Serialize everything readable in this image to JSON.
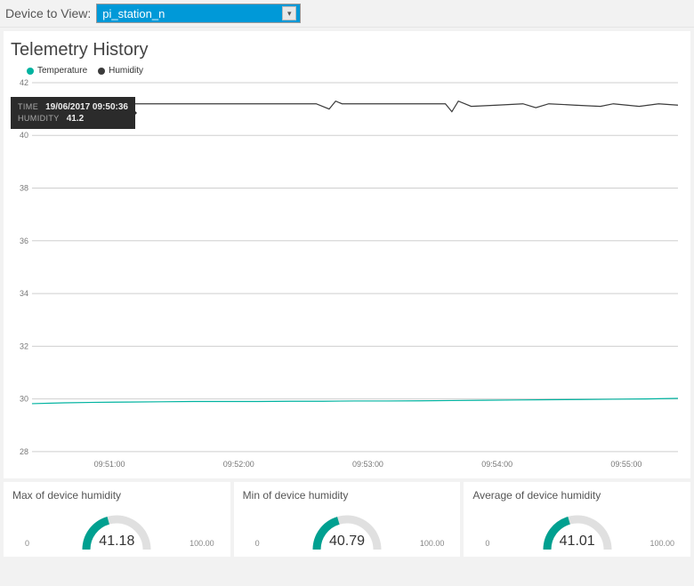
{
  "header": {
    "label": "Device to View:",
    "selected_device": "pi_station_n"
  },
  "chart": {
    "title": "Telemetry History",
    "legend": [
      {
        "label": "Temperature",
        "color": "#00b3a0"
      },
      {
        "label": "Humidity",
        "color": "#3b3b3b"
      }
    ],
    "type": "line",
    "y": {
      "min": 28,
      "max": 42,
      "step": 2,
      "ticks": [
        28,
        30,
        32,
        34,
        36,
        38,
        40,
        42
      ],
      "label_fontsize": 9,
      "label_color": "#777777"
    },
    "x": {
      "ticks": [
        "09:51:00",
        "09:52:00",
        "09:53:00",
        "09:54:00",
        "09:55:00"
      ],
      "positions": [
        0.12,
        0.32,
        0.52,
        0.72,
        0.92
      ],
      "label_fontsize": 9,
      "label_color": "#777777"
    },
    "grid_color": "#cfcfcf",
    "background_color": "#ffffff",
    "series": {
      "humidity": {
        "color": "#3b3b3b",
        "width": 1.2,
        "points": [
          [
            0.0,
            41.2
          ],
          [
            0.04,
            41.2
          ],
          [
            0.08,
            41.2
          ],
          [
            0.12,
            41.2
          ],
          [
            0.16,
            41.2
          ],
          [
            0.2,
            41.2
          ],
          [
            0.24,
            41.2
          ],
          [
            0.28,
            41.2
          ],
          [
            0.32,
            41.2
          ],
          [
            0.36,
            41.2
          ],
          [
            0.4,
            41.2
          ],
          [
            0.44,
            41.2
          ],
          [
            0.46,
            41.0
          ],
          [
            0.47,
            41.3
          ],
          [
            0.48,
            41.2
          ],
          [
            0.52,
            41.2
          ],
          [
            0.56,
            41.2
          ],
          [
            0.6,
            41.2
          ],
          [
            0.64,
            41.2
          ],
          [
            0.65,
            40.9
          ],
          [
            0.66,
            41.3
          ],
          [
            0.68,
            41.1
          ],
          [
            0.72,
            41.15
          ],
          [
            0.76,
            41.2
          ],
          [
            0.78,
            41.05
          ],
          [
            0.8,
            41.2
          ],
          [
            0.84,
            41.15
          ],
          [
            0.88,
            41.1
          ],
          [
            0.9,
            41.2
          ],
          [
            0.94,
            41.1
          ],
          [
            0.97,
            41.2
          ],
          [
            1.0,
            41.15
          ]
        ]
      },
      "temperature": {
        "color": "#00b3a0",
        "width": 1.2,
        "points": [
          [
            0.0,
            29.82
          ],
          [
            0.05,
            29.85
          ],
          [
            0.1,
            29.87
          ],
          [
            0.15,
            29.88
          ],
          [
            0.2,
            29.89
          ],
          [
            0.25,
            29.9
          ],
          [
            0.3,
            29.9
          ],
          [
            0.35,
            29.9
          ],
          [
            0.4,
            29.91
          ],
          [
            0.45,
            29.91
          ],
          [
            0.5,
            29.92
          ],
          [
            0.55,
            29.92
          ],
          [
            0.6,
            29.93
          ],
          [
            0.65,
            29.94
          ],
          [
            0.7,
            29.95
          ],
          [
            0.75,
            29.96
          ],
          [
            0.8,
            29.97
          ],
          [
            0.85,
            29.98
          ],
          [
            0.9,
            29.99
          ],
          [
            0.95,
            30.0
          ],
          [
            1.0,
            30.02
          ]
        ]
      }
    },
    "tooltip": {
      "rows": [
        {
          "key": "TIME",
          "value": "19/06/2017 09:50:36"
        },
        {
          "key": "HUMIDITY",
          "value": "41.2"
        }
      ]
    }
  },
  "gauges": [
    {
      "title": "Max of device humidity",
      "min_label": "0",
      "max_label": "100.00",
      "value": "41.18",
      "frac": 0.4118,
      "color": "#00a090",
      "track": "#e0e0e0"
    },
    {
      "title": "Min of device humidity",
      "min_label": "0",
      "max_label": "100.00",
      "value": "40.79",
      "frac": 0.4079,
      "color": "#00a090",
      "track": "#e0e0e0"
    },
    {
      "title": "Average of device humidity",
      "min_label": "0",
      "max_label": "100.00",
      "value": "41.01",
      "frac": 0.4101,
      "color": "#00a090",
      "track": "#e0e0e0"
    }
  ]
}
